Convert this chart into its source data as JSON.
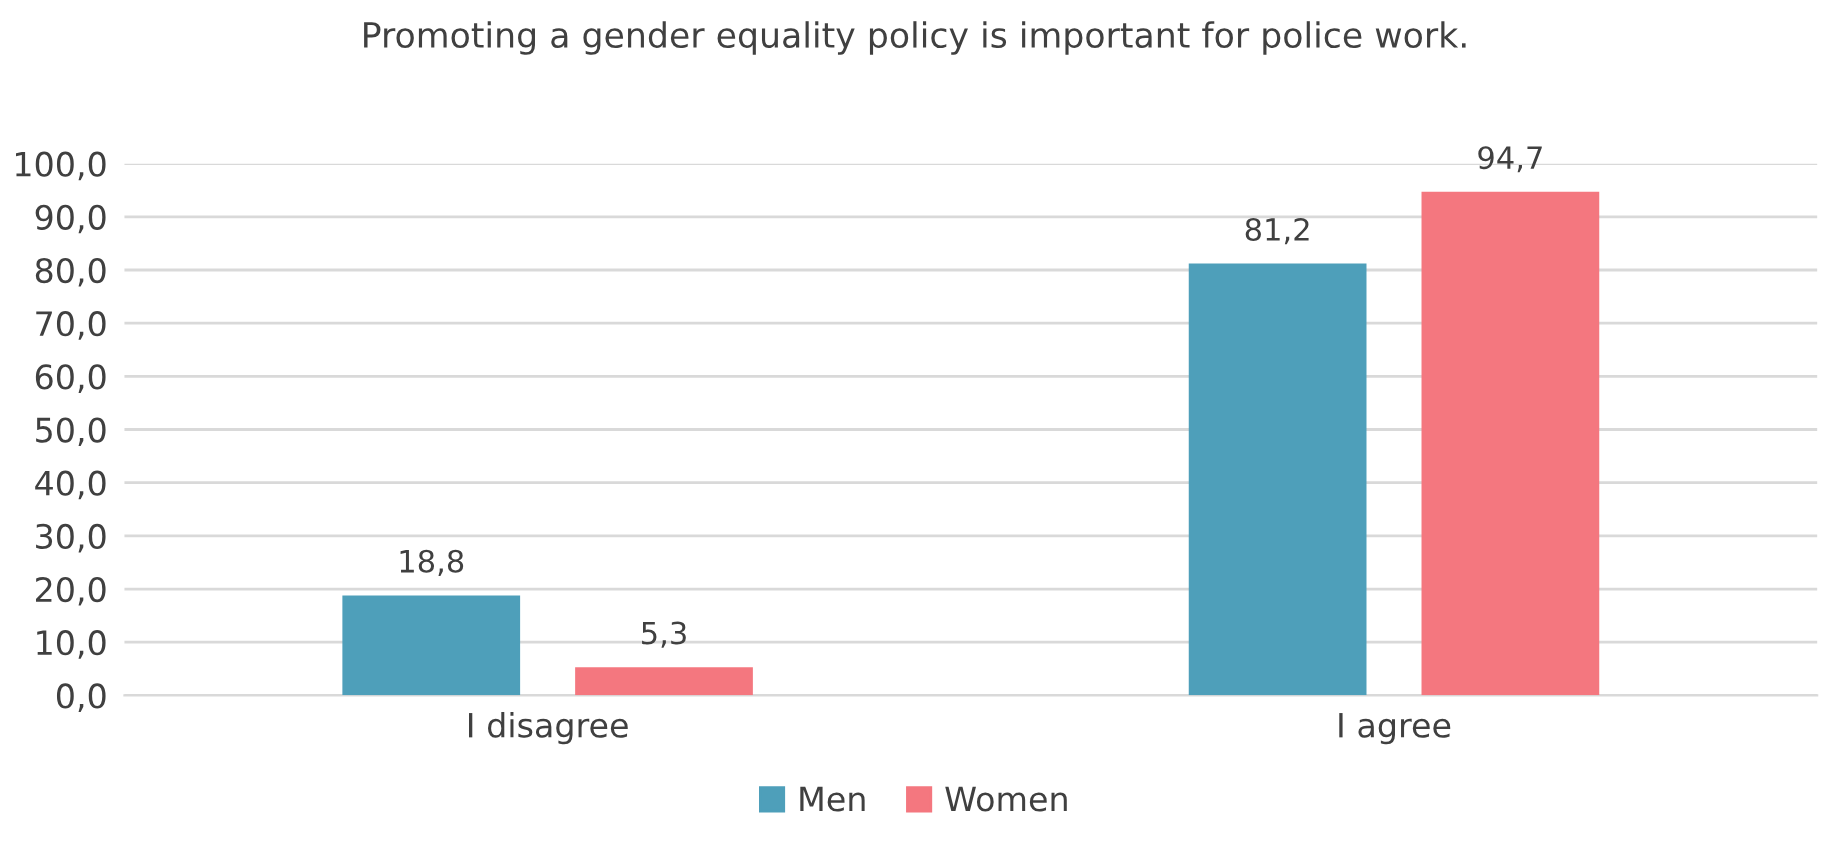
{
  "chart_data": {
    "type": "bar",
    "title": "Promoting a gender equality policy is important for police work.",
    "categories": [
      "I disagree",
      "I agree"
    ],
    "series": [
      {
        "name": "Men",
        "color": "#4e9fba",
        "values": [
          18.8,
          81.2
        ],
        "value_labels": [
          "18,8",
          "81,2"
        ]
      },
      {
        "name": "Women",
        "color": "#f4777f",
        "values": [
          5.3,
          94.7
        ],
        "value_labels": [
          "5,3",
          "94,7"
        ]
      }
    ],
    "ylim": [
      0,
      100
    ],
    "yticks": [
      {
        "value": 0,
        "label": "0,0"
      },
      {
        "value": 10,
        "label": "10,0"
      },
      {
        "value": 20,
        "label": "20,0"
      },
      {
        "value": 30,
        "label": "30,0"
      },
      {
        "value": 40,
        "label": "40,0"
      },
      {
        "value": 50,
        "label": "50,0"
      },
      {
        "value": 60,
        "label": "60,0"
      },
      {
        "value": 70,
        "label": "70,0"
      },
      {
        "value": 80,
        "label": "80,0"
      },
      {
        "value": 90,
        "label": "90,0"
      },
      {
        "value": 100,
        "label": "100,0"
      }
    ],
    "grid": "y",
    "legend": "bottom"
  }
}
